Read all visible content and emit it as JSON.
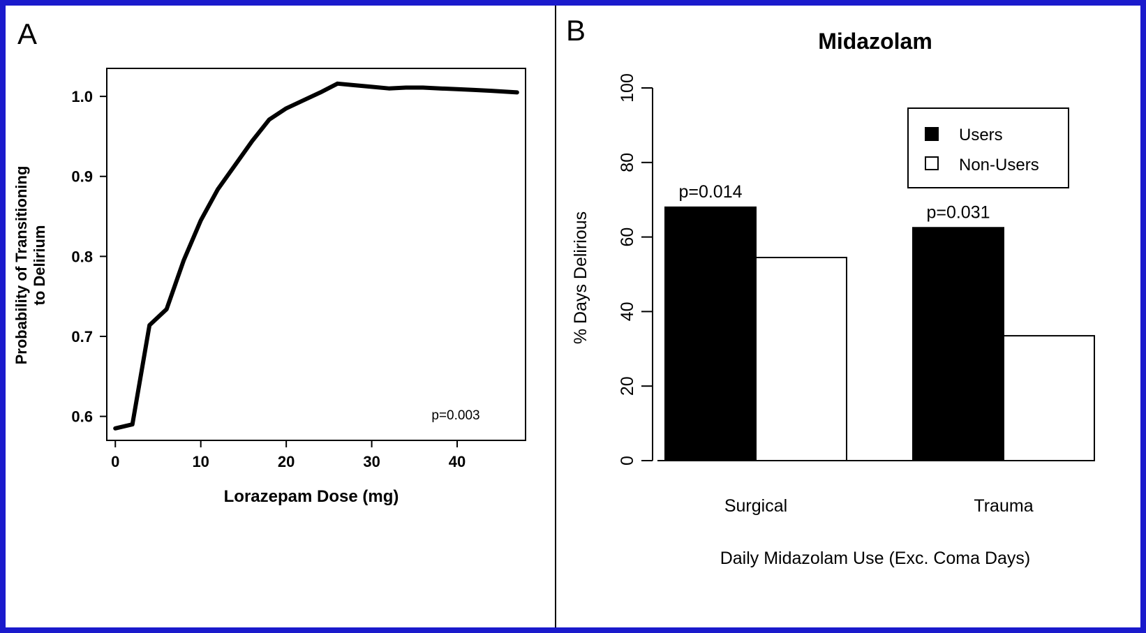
{
  "chart_data": [
    {
      "panel_label": "A",
      "type": "line",
      "title": "",
      "xlabel": "Lorazepam Dose (mg)",
      "ylabel_lines": [
        "Probability of Transitioning",
        "to Delirium"
      ],
      "xlim": [
        -1,
        48
      ],
      "ylim": [
        0.57,
        1.035
      ],
      "xticks": [
        0,
        10,
        20,
        30,
        40
      ],
      "yticks": [
        0.6,
        0.7,
        0.8,
        0.9,
        1.0
      ],
      "ytick_labels": [
        "0.6",
        "0.7",
        "0.8",
        "0.9",
        "1.0"
      ],
      "annotation": "p=0.003",
      "series": [
        {
          "x": [
            0,
            2,
            4,
            6,
            8,
            10,
            12,
            14,
            16,
            18,
            20,
            22,
            24,
            26,
            28,
            30,
            32,
            34,
            36,
            38,
            40,
            42,
            44,
            47
          ],
          "y": [
            0.585,
            0.59,
            0.714,
            0.734,
            0.795,
            0.845,
            0.884,
            0.914,
            0.944,
            0.971,
            0.985,
            0.995,
            1.005,
            1.016,
            1.014,
            1.012,
            1.01,
            1.011,
            1.011,
            1.01,
            1.009,
            1.008,
            1.007,
            1.005
          ]
        }
      ]
    },
    {
      "panel_label": "B",
      "type": "bar",
      "title": "Midazolam",
      "xlabel": "Daily Midazolam Use (Exc. Coma Days)",
      "ylabel": "% Days Delirious",
      "ylim": [
        0,
        100
      ],
      "yticks": [
        0,
        20,
        40,
        60,
        80,
        100
      ],
      "categories": [
        "Surgical",
        "Trauma"
      ],
      "legend_position": "top-right",
      "series": [
        {
          "name": "Users",
          "color": "#000000",
          "values": [
            68,
            62.5
          ]
        },
        {
          "name": "Non-Users",
          "color": "#ffffff",
          "values": [
            54.5,
            33.5
          ]
        }
      ],
      "annotations": [
        "p=0.014",
        "p=0.031"
      ]
    }
  ]
}
